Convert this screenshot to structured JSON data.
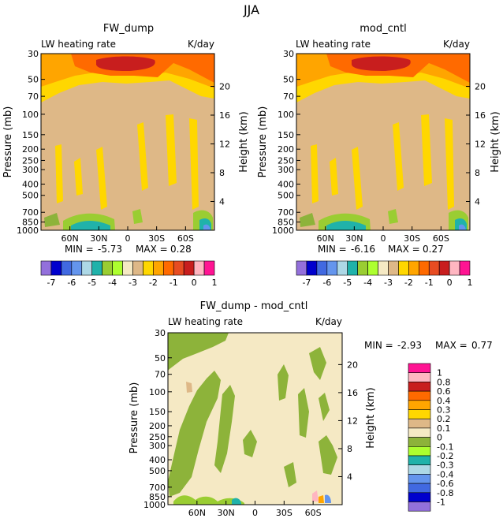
{
  "figure_title": "JJA",
  "chart_data": [
    {
      "type": "heatmap",
      "title": "FW_dump",
      "subtitle_left": "LW heating rate",
      "subtitle_right": "K/day",
      "ylabel": "Pressure (mb)",
      "ylabel_right": "Height (km)",
      "x_ticks": [
        "60N",
        "30N",
        "0",
        "30S",
        "60S"
      ],
      "y_ticks": [
        "30",
        "50",
        "70",
        "100",
        "150",
        "200",
        "250",
        "300",
        "400",
        "500",
        "700",
        "850",
        "1000"
      ],
      "height_ticks": [
        "4",
        "8",
        "12",
        "16",
        "20"
      ],
      "stats": {
        "min_label": "MIN =",
        "min": "-5.73",
        "max_label": "MAX =",
        "max": "0.28"
      },
      "colorbar_labels": [
        "-7",
        "-6",
        "-5",
        "-4",
        "-3",
        "-2",
        "-1",
        "0",
        "1"
      ],
      "colors": [
        "#9370DB",
        "#0000CD",
        "#4169E1",
        "#6495ED",
        "#ADD8E6",
        "#20B2AA",
        "#9ACD32",
        "#ADFF2F",
        "#F5E9C4",
        "#DEB887",
        "#FFD700",
        "#FFA500",
        "#FF6A00",
        "#E74C22",
        "#C81E1E",
        "#FFB6C1",
        "#FF1493"
      ]
    },
    {
      "type": "heatmap",
      "title": "mod_cntl",
      "subtitle_left": "LW heating rate",
      "subtitle_right": "K/day",
      "ylabel": "Pressure (mb)",
      "ylabel_right": "Height (km)",
      "x_ticks": [
        "60N",
        "30N",
        "0",
        "30S",
        "60S"
      ],
      "y_ticks": [
        "30",
        "50",
        "70",
        "100",
        "150",
        "200",
        "250",
        "300",
        "400",
        "500",
        "700",
        "850",
        "1000"
      ],
      "height_ticks": [
        "4",
        "8",
        "12",
        "16",
        "20"
      ],
      "stats": {
        "min_label": "MIN =",
        "min": "-6.16",
        "max_label": "MAX =",
        "max": "0.27"
      },
      "colorbar_labels": [
        "-7",
        "-6",
        "-5",
        "-4",
        "-3",
        "-2",
        "-1",
        "0",
        "1"
      ]
    },
    {
      "type": "heatmap",
      "title": "FW_dump - mod_cntl",
      "subtitle_left": "LW heating rate",
      "subtitle_right": "K/day",
      "ylabel": "Pressure (mb)",
      "ylabel_right": "Height (km)",
      "x_ticks": [
        "60N",
        "30N",
        "0",
        "30S",
        "60S"
      ],
      "y_ticks": [
        "30",
        "50",
        "70",
        "100",
        "150",
        "200",
        "250",
        "300",
        "400",
        "500",
        "700",
        "850",
        "1000"
      ],
      "height_ticks": [
        "4",
        "8",
        "12",
        "16",
        "20"
      ],
      "stats": {
        "min_label": "MIN =",
        "min": "-2.93",
        "max_label": "MAX =",
        "max": "0.77"
      },
      "colorbar_labels": [
        "1",
        "0.8",
        "0.6",
        "0.4",
        "0.3",
        "0.2",
        "0.1",
        "0",
        "-0.1",
        "-0.2",
        "-0.3",
        "-0.4",
        "-0.6",
        "-0.8",
        "-1"
      ],
      "colors": [
        "#FF1493",
        "#FFB6C1",
        "#C81E1E",
        "#FF6A00",
        "#FFA500",
        "#FFD700",
        "#DEB887",
        "#F5E9C4",
        "#8DB33A",
        "#ADFF2F",
        "#20B2AA",
        "#ADD8E6",
        "#6495ED",
        "#4169E1",
        "#0000CD",
        "#9370DB"
      ]
    }
  ]
}
